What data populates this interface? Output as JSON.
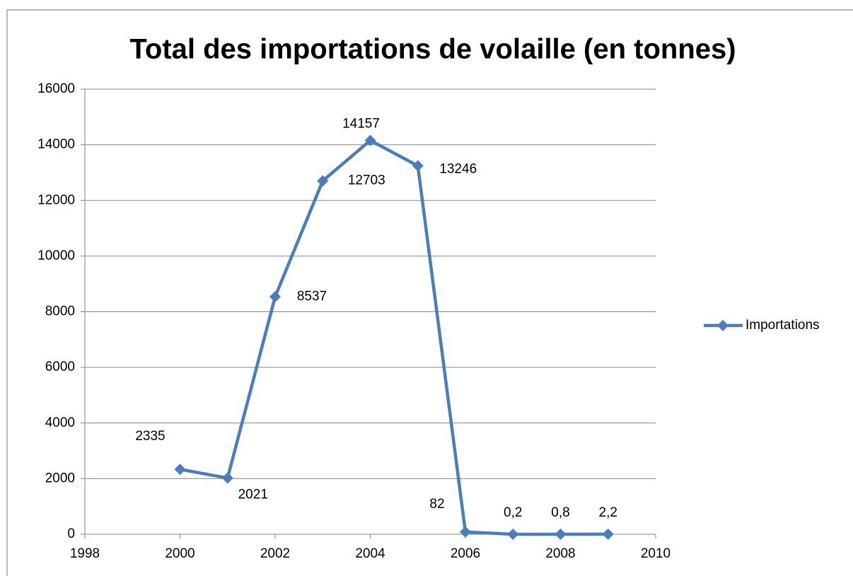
{
  "chart_data": {
    "type": "line",
    "title": "Total des importations de volaille (en tonnes)",
    "x": [
      2000,
      2001,
      2002,
      2003,
      2004,
      2005,
      2006,
      2007,
      2008,
      2009
    ],
    "series": [
      {
        "name": "Importations",
        "color": "#4a7ebb",
        "values": [
          2335,
          2021,
          8537,
          12703,
          14157,
          13246,
          82,
          0.2,
          0.8,
          2.2
        ],
        "value_labels": [
          "2335",
          "2021",
          "8537",
          "12703",
          "14157",
          "13246",
          "82",
          "0,2",
          "0,8",
          "2,2"
        ]
      }
    ],
    "xlim": [
      1998,
      2010
    ],
    "xticks": [
      1998,
      2000,
      2002,
      2004,
      2006,
      2008,
      2010
    ],
    "ylim": [
      0,
      16000
    ],
    "yticks": [
      0,
      2000,
      4000,
      6000,
      8000,
      10000,
      12000,
      14000,
      16000
    ],
    "grid": true,
    "legend": "right"
  }
}
